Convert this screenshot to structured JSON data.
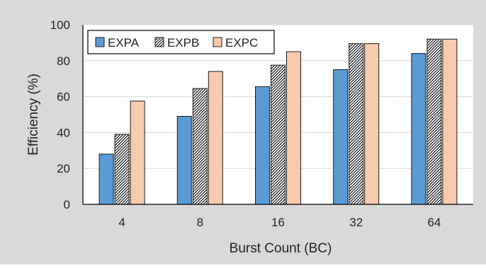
{
  "chart_data": {
    "type": "bar",
    "title": "",
    "xlabel": "Burst Count (BC)",
    "ylabel": "Efficiency (%)",
    "ylim": [
      0,
      100
    ],
    "yticks": [
      0,
      20,
      40,
      60,
      80,
      100
    ],
    "grid": "horizontal",
    "legend": "top-left",
    "categories": [
      "4",
      "8",
      "16",
      "32",
      "64"
    ],
    "series": [
      {
        "name": "EXPA",
        "values": [
          28,
          49,
          65.5,
          75,
          84
        ],
        "color": "#5b9bd5",
        "pattern": "solid"
      },
      {
        "name": "EXPB",
        "values": [
          39,
          64.5,
          77.5,
          89.5,
          92
        ],
        "color": "#ffffff",
        "pattern": "diagonal-hatch"
      },
      {
        "name": "EXPC",
        "values": [
          57.5,
          74,
          85,
          89.5,
          92
        ],
        "color": "#f8cbad",
        "pattern": "solid"
      }
    ],
    "colors": {
      "background": "#d9d9d9",
      "plot_background": "#ffffff",
      "gridline": "#d9d9d9",
      "axis": "#000000",
      "bar_edge": "#1a1a1a"
    }
  }
}
